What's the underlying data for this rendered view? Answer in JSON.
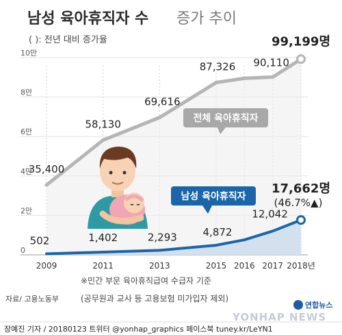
{
  "title": {
    "main": "남성 육아휴직자 수",
    "sub": "증가 추이"
  },
  "subtitle": "( ): 전년 대비 증가율",
  "chart_data": {
    "type": "line",
    "x": [
      "2009",
      "2011",
      "2013",
      "2015",
      "2016",
      "2017",
      "2018년"
    ],
    "x_values": [
      2009,
      2011,
      2013,
      2015,
      2016,
      2017,
      2018
    ],
    "ylim": [
      0,
      100000
    ],
    "yticks": [
      0,
      20000,
      40000,
      60000,
      80000,
      100000
    ],
    "ytick_labels": [
      "0",
      "2만",
      "4만",
      "6만",
      "8만",
      "10만"
    ],
    "series": [
      {
        "name": "전체 육아휴직자",
        "color": "#b5b5b5",
        "values": [
          35400,
          58130,
          69616,
          87326,
          89500,
          90110,
          99199
        ],
        "labels": [
          "35,400",
          "58,130",
          "69,616",
          "87,326",
          "",
          "90,110",
          "99,199명"
        ]
      },
      {
        "name": "남성 육아휴직자",
        "color": "#1a66a8",
        "values": [
          502,
          1402,
          2293,
          4872,
          7616,
          12042,
          17662
        ],
        "labels": [
          "502",
          "1,402",
          "2,293",
          "4,872",
          "",
          "12,042",
          "17,662명"
        ],
        "last_growth": "(46.7%▲)"
      }
    ]
  },
  "notes": {
    "line1": "※민간 부문 육아휴직급여 수급자 기준",
    "line2": "(공무원과 교사 등 고용보험 미가입자 제외)"
  },
  "source": "자료/ 고용노동부",
  "credit": "장예진 기자 / 20180123 트위터 @yonhap_graphics  페이스북 tuney.kr/LeYN1",
  "brand": "연합뉴스",
  "watermark": "YONHAP NEWS",
  "colors": {
    "total": "#b5b5b5",
    "male": "#1a66a8",
    "male_fill": "#cfdeed"
  }
}
